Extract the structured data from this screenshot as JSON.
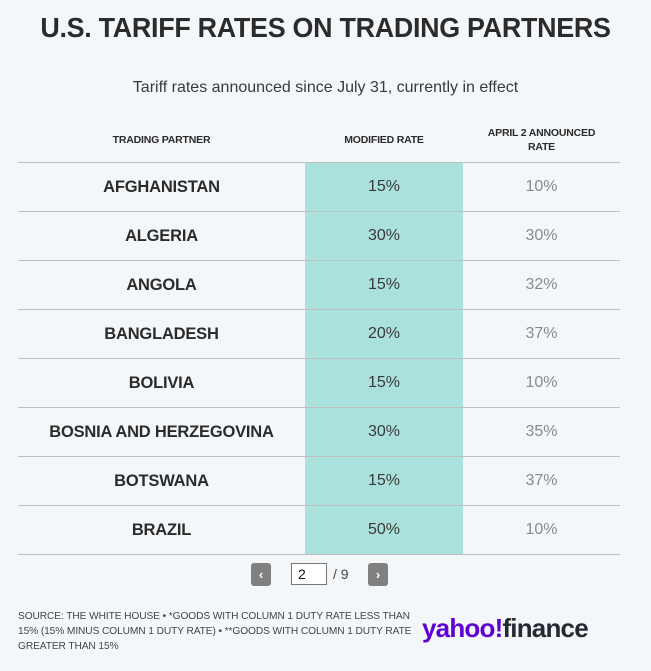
{
  "header": {
    "title": "U.S. TARIFF RATES ON TRADING PARTNERS",
    "subtitle": "Tariff rates announced since July 31, currently in effect"
  },
  "table": {
    "columns": [
      "TRADING PARTNER",
      "MODIFIED RATE",
      "APRIL 2 ANNOUNCED RATE"
    ],
    "rows": [
      {
        "partner": "AFGHANISTAN",
        "modified": "15%",
        "april": "10%"
      },
      {
        "partner": "ALGERIA",
        "modified": "30%",
        "april": "30%"
      },
      {
        "partner": "ANGOLA",
        "modified": "15%",
        "april": "32%"
      },
      {
        "partner": "BANGLADESH",
        "modified": "20%",
        "april": "37%"
      },
      {
        "partner": "BOLIVIA",
        "modified": "15%",
        "april": "10%"
      },
      {
        "partner": "BOSNIA AND HERZEGOVINA",
        "modified": "30%",
        "april": "35%"
      },
      {
        "partner": "BOTSWANA",
        "modified": "15%",
        "april": "37%"
      },
      {
        "partner": "BRAZIL",
        "modified": "50%",
        "april": "10%"
      }
    ],
    "highlight_color": "#abe1dc"
  },
  "pagination": {
    "prev_label": "‹",
    "next_label": "›",
    "current_page": "2",
    "total_label": "/ 9"
  },
  "footer": {
    "source": "SOURCE: THE WHITE HOUSE • *GOODS WITH COLUMN 1 DUTY RATE LESS THAN 15% (15% MINUS COLUMN 1 DUTY RATE) • **GOODS WITH COLUMN 1 DUTY RATE GREATER THAN 15%",
    "logo_yahoo": "yahoo!",
    "logo_finance": "finance",
    "logo_color": "#6001d2"
  }
}
